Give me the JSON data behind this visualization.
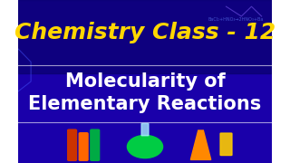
{
  "bg_color_top": "#1a0099",
  "bg_color_bottom": "#2200cc",
  "title_text": "Chemistry Class - 12",
  "title_color": "#FFD700",
  "title_fontsize": 18,
  "subtitle_line1": "Molecularity of",
  "subtitle_line2": "Elementary Reactions",
  "subtitle_color": "#FFFFFF",
  "subtitle_fontsize": 15,
  "divider_color": "#FFFFFF",
  "divider_alpha": 0.6,
  "fig_width": 3.2,
  "fig_height": 1.8,
  "dpi": 100
}
